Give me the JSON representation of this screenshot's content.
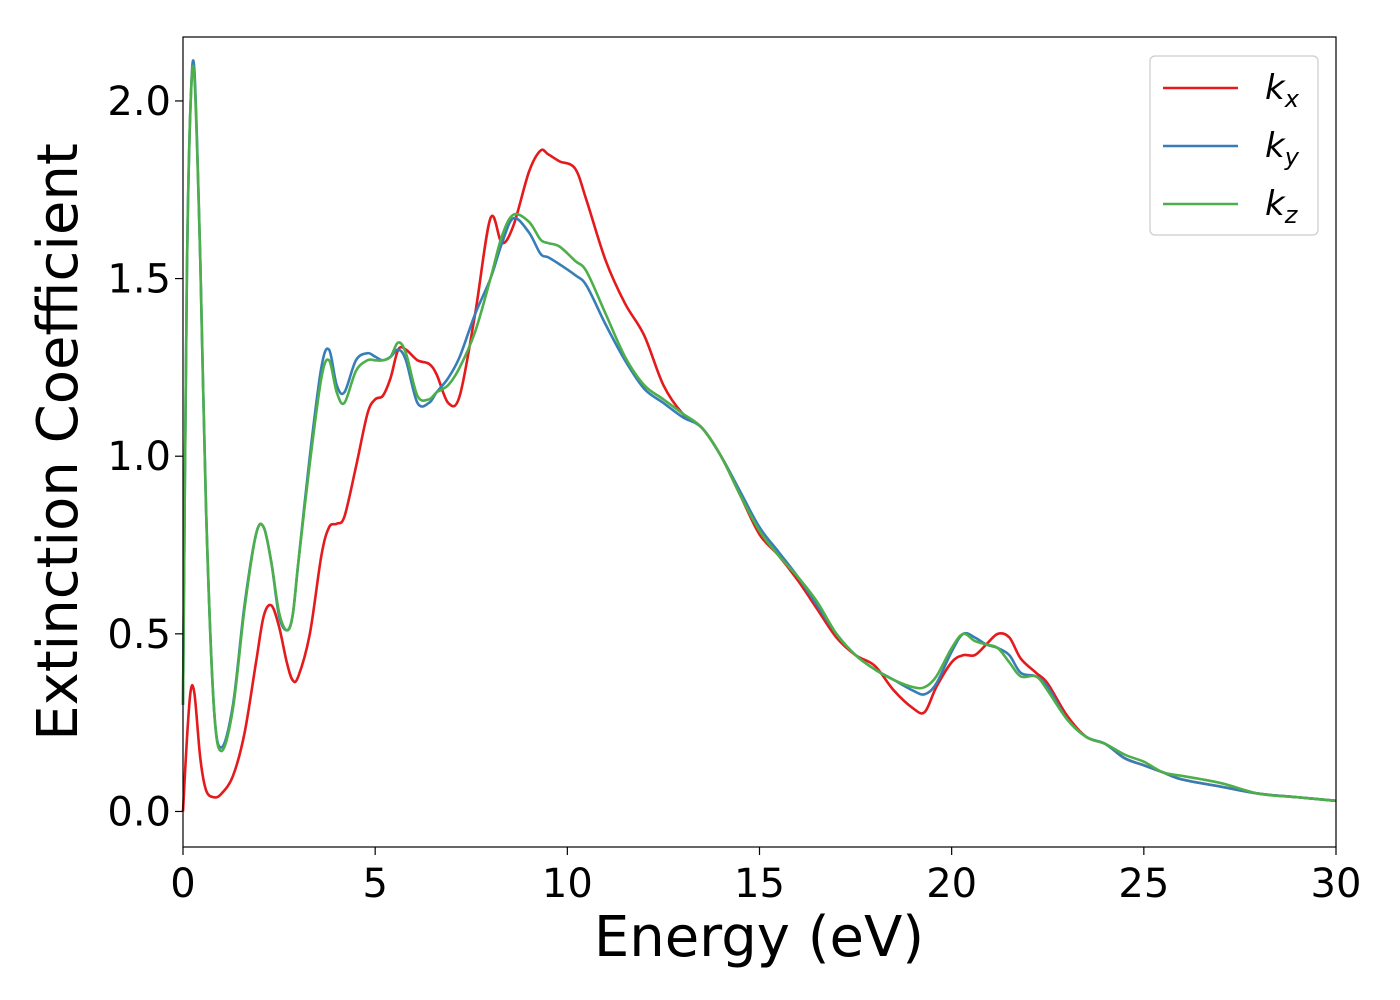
{
  "chart_data": {
    "type": "line",
    "xlabel": "Energy (eV)",
    "ylabel": "Extinction Coefficient",
    "xlim": [
      0,
      30
    ],
    "ylim": [
      -0.1,
      2.18
    ],
    "xticks": [
      0,
      5,
      10,
      15,
      20,
      25,
      30
    ],
    "yticks": [
      0.0,
      0.5,
      1.0,
      1.5,
      2.0
    ],
    "xtick_labels": [
      "0",
      "5",
      "10",
      "15",
      "20",
      "25",
      "30"
    ],
    "ytick_labels": [
      "0.0",
      "0.5",
      "1.0",
      "1.5",
      "2.0"
    ],
    "grid": false,
    "legend_position": "top-right",
    "series": [
      {
        "name": "k",
        "subscript": "x",
        "color": "#e41a1c",
        "x": [
          0,
          0.1,
          0.2,
          0.3,
          0.45,
          0.6,
          0.8,
          1.0,
          1.3,
          1.6,
          1.9,
          2.1,
          2.3,
          2.5,
          2.7,
          2.85,
          3.0,
          3.3,
          3.6,
          3.8,
          4.0,
          4.2,
          4.5,
          4.8,
          5.0,
          5.2,
          5.4,
          5.6,
          5.8,
          6.1,
          6.4,
          6.6,
          6.9,
          7.2,
          7.6,
          8.0,
          8.3,
          8.6,
          9.0,
          9.3,
          9.5,
          9.8,
          10.2,
          10.5,
          11.0,
          11.5,
          12.0,
          12.5,
          13.0,
          13.5,
          14.0,
          14.5,
          15.0,
          15.5,
          16.0,
          16.5,
          17.0,
          17.5,
          18.0,
          18.5,
          19.0,
          19.3,
          19.6,
          20.0,
          20.3,
          20.6,
          20.9,
          21.2,
          21.5,
          21.8,
          22.2,
          22.5,
          23.0,
          23.5,
          24.0,
          24.5,
          25.0,
          25.5,
          26.0,
          27.0,
          28.0,
          29.0,
          30.0
        ],
        "y": [
          0.0,
          0.2,
          0.34,
          0.33,
          0.15,
          0.06,
          0.04,
          0.05,
          0.1,
          0.22,
          0.42,
          0.55,
          0.58,
          0.52,
          0.42,
          0.37,
          0.38,
          0.5,
          0.72,
          0.8,
          0.81,
          0.83,
          0.97,
          1.12,
          1.16,
          1.17,
          1.22,
          1.3,
          1.3,
          1.27,
          1.26,
          1.23,
          1.15,
          1.17,
          1.4,
          1.67,
          1.6,
          1.65,
          1.8,
          1.86,
          1.85,
          1.83,
          1.81,
          1.72,
          1.55,
          1.43,
          1.34,
          1.2,
          1.12,
          1.08,
          1.0,
          0.89,
          0.78,
          0.72,
          0.65,
          0.57,
          0.49,
          0.44,
          0.41,
          0.34,
          0.29,
          0.28,
          0.35,
          0.42,
          0.44,
          0.44,
          0.47,
          0.5,
          0.49,
          0.43,
          0.39,
          0.36,
          0.27,
          0.21,
          0.19,
          0.15,
          0.13,
          0.11,
          0.09,
          0.07,
          0.05,
          0.04,
          0.03
        ]
      },
      {
        "name": "k",
        "subscript": "y",
        "color": "#377eb8",
        "x": [
          0,
          0.1,
          0.2,
          0.3,
          0.45,
          0.6,
          0.8,
          1.0,
          1.3,
          1.6,
          1.9,
          2.1,
          2.3,
          2.5,
          2.7,
          2.85,
          3.0,
          3.3,
          3.6,
          3.8,
          4.0,
          4.2,
          4.5,
          4.8,
          5.0,
          5.2,
          5.4,
          5.6,
          5.8,
          6.1,
          6.4,
          6.6,
          6.9,
          7.2,
          7.6,
          8.0,
          8.3,
          8.6,
          9.0,
          9.3,
          9.5,
          9.8,
          10.2,
          10.5,
          11.0,
          11.5,
          12.0,
          12.5,
          13.0,
          13.5,
          14.0,
          14.5,
          15.0,
          15.5,
          16.0,
          16.5,
          17.0,
          17.5,
          18.0,
          18.5,
          19.0,
          19.3,
          19.6,
          20.0,
          20.3,
          20.6,
          20.9,
          21.2,
          21.5,
          21.8,
          22.2,
          22.5,
          23.0,
          23.5,
          24.0,
          24.5,
          25.0,
          25.5,
          26.0,
          27.0,
          28.0,
          29.0,
          30.0
        ],
        "y": [
          0.3,
          1.5,
          2.0,
          2.08,
          1.55,
          0.85,
          0.3,
          0.18,
          0.3,
          0.58,
          0.78,
          0.8,
          0.7,
          0.55,
          0.51,
          0.55,
          0.7,
          1.0,
          1.25,
          1.3,
          1.2,
          1.18,
          1.27,
          1.29,
          1.28,
          1.27,
          1.28,
          1.3,
          1.27,
          1.15,
          1.15,
          1.18,
          1.22,
          1.28,
          1.4,
          1.5,
          1.6,
          1.67,
          1.63,
          1.57,
          1.56,
          1.54,
          1.51,
          1.48,
          1.37,
          1.27,
          1.19,
          1.15,
          1.11,
          1.08,
          1.0,
          0.9,
          0.8,
          0.73,
          0.66,
          0.58,
          0.5,
          0.44,
          0.4,
          0.37,
          0.34,
          0.33,
          0.36,
          0.45,
          0.5,
          0.49,
          0.47,
          0.46,
          0.44,
          0.39,
          0.38,
          0.35,
          0.26,
          0.21,
          0.19,
          0.15,
          0.13,
          0.11,
          0.09,
          0.07,
          0.05,
          0.04,
          0.03
        ]
      },
      {
        "name": "k",
        "subscript": "z",
        "color": "#4daf4a",
        "x": [
          0,
          0.1,
          0.2,
          0.3,
          0.45,
          0.6,
          0.8,
          1.0,
          1.3,
          1.6,
          1.9,
          2.1,
          2.3,
          2.5,
          2.7,
          2.85,
          3.0,
          3.3,
          3.6,
          3.8,
          4.0,
          4.2,
          4.5,
          4.8,
          5.0,
          5.2,
          5.4,
          5.6,
          5.8,
          6.1,
          6.4,
          6.6,
          6.9,
          7.2,
          7.6,
          8.0,
          8.3,
          8.6,
          9.0,
          9.3,
          9.5,
          9.8,
          10.2,
          10.5,
          11.0,
          11.5,
          12.0,
          12.5,
          13.0,
          13.5,
          14.0,
          14.5,
          15.0,
          15.5,
          16.0,
          16.5,
          17.0,
          17.5,
          18.0,
          18.5,
          19.0,
          19.3,
          19.6,
          20.0,
          20.3,
          20.6,
          20.9,
          21.2,
          21.5,
          21.8,
          22.2,
          22.5,
          23.0,
          23.5,
          24.0,
          24.5,
          25.0,
          25.5,
          26.0,
          27.0,
          28.0,
          29.0,
          30.0
        ],
        "y": [
          0.3,
          1.5,
          2.0,
          2.06,
          1.55,
          0.85,
          0.3,
          0.17,
          0.29,
          0.57,
          0.78,
          0.8,
          0.7,
          0.56,
          0.51,
          0.55,
          0.7,
          0.98,
          1.22,
          1.27,
          1.18,
          1.15,
          1.24,
          1.27,
          1.27,
          1.27,
          1.28,
          1.32,
          1.29,
          1.17,
          1.16,
          1.18,
          1.2,
          1.25,
          1.35,
          1.5,
          1.62,
          1.68,
          1.66,
          1.61,
          1.6,
          1.59,
          1.55,
          1.52,
          1.4,
          1.28,
          1.2,
          1.16,
          1.12,
          1.08,
          1.0,
          0.89,
          0.79,
          0.72,
          0.66,
          0.59,
          0.5,
          0.44,
          0.4,
          0.37,
          0.35,
          0.35,
          0.38,
          0.46,
          0.5,
          0.48,
          0.47,
          0.46,
          0.42,
          0.38,
          0.38,
          0.34,
          0.26,
          0.21,
          0.19,
          0.16,
          0.14,
          0.11,
          0.1,
          0.08,
          0.05,
          0.04,
          0.03
        ]
      }
    ]
  }
}
